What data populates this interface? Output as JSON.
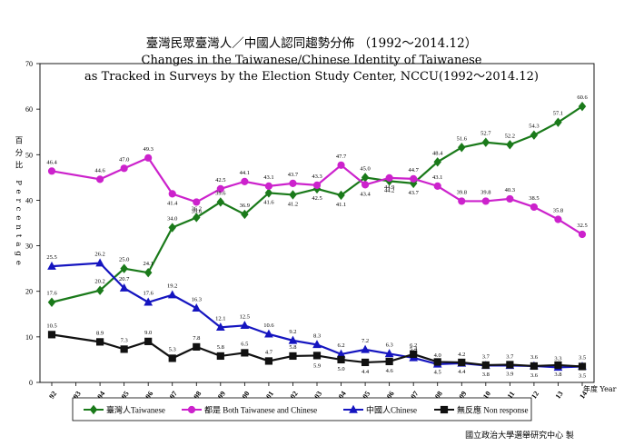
{
  "chart_data": {
    "type": "line",
    "title_zh": "臺灣民眾臺灣人／中國人認同趨勢分佈 （1992～2014.12）",
    "title_en_1": "Changes in the Taiwanese/Chinese Identity of Taiwanese",
    "title_en_2": "as Tracked in Surveys by the Election Study Center, NCCU(1992～2014.12)",
    "ylabel": "百分比 Percentage",
    "xlabel": "年度 Year",
    "source": "國立政治大學選舉研究中心 製",
    "ylim": [
      0,
      70
    ],
    "yticks": [
      0,
      10,
      20,
      30,
      40,
      50,
      60,
      70
    ],
    "xlim": [
      92,
      114
    ],
    "categories": [
      "92",
      "93",
      "94",
      "95",
      "96",
      "97",
      "98",
      "99",
      "00",
      "01",
      "02",
      "03",
      "04",
      "05",
      "06",
      "07",
      "08",
      "09",
      "10",
      "11",
      "12",
      "13",
      "14"
    ],
    "series": [
      {
        "name": "臺灣人Taiwanese",
        "color": "#1a7a1a",
        "marker": "diamond",
        "x": [
          92,
          94,
          95,
          96,
          97,
          98,
          99,
          100,
          101,
          102,
          103,
          104,
          105,
          106,
          107,
          108,
          109,
          110,
          111,
          112,
          113,
          114
        ],
        "values": [
          17.6,
          20.2,
          25.0,
          24.1,
          34.0,
          36.2,
          39.6,
          36.9,
          41.6,
          41.2,
          42.5,
          41.1,
          45.0,
          44.2,
          43.7,
          48.4,
          51.6,
          52.7,
          52.2,
          54.3,
          57.1,
          60.6
        ]
      },
      {
        "name": "都是 Both Taiwanese and Chinese",
        "color": "#cc22cc",
        "marker": "circle",
        "x": [
          92,
          94,
          95,
          96,
          97,
          98,
          99,
          100,
          101,
          102,
          103,
          104,
          105,
          106,
          107,
          108,
          109,
          110,
          111,
          112,
          113,
          114
        ],
        "values": [
          46.4,
          44.6,
          47.0,
          49.3,
          41.4,
          39.6,
          42.5,
          44.1,
          43.1,
          43.7,
          43.3,
          47.7,
          43.4,
          44.9,
          44.7,
          43.1,
          39.8,
          39.8,
          40.3,
          38.5,
          35.8,
          32.5
        ]
      },
      {
        "name": "中國人Chinese",
        "color": "#1515c0",
        "marker": "triangle",
        "x": [
          92,
          94,
          95,
          96,
          97,
          98,
          99,
          100,
          101,
          102,
          103,
          104,
          105,
          106,
          107,
          108,
          109,
          110,
          111,
          112,
          113,
          114
        ],
        "values": [
          25.5,
          26.2,
          20.7,
          17.6,
          19.2,
          16.3,
          12.1,
          12.5,
          10.6,
          9.2,
          8.3,
          6.2,
          7.2,
          6.3,
          5.4,
          4.0,
          4.2,
          3.7,
          3.7,
          3.6,
          3.3,
          3.5
        ]
      },
      {
        "name": "無反應 Non response",
        "color": "#111111",
        "marker": "square",
        "x": [
          92,
          94,
          95,
          96,
          97,
          98,
          99,
          100,
          101,
          102,
          103,
          104,
          105,
          106,
          107,
          108,
          109,
          110,
          111,
          112,
          113,
          114
        ],
        "values": [
          10.5,
          8.9,
          7.3,
          9.0,
          5.3,
          7.8,
          5.8,
          6.5,
          4.7,
          5.8,
          5.9,
          5.0,
          4.4,
          4.6,
          6.2,
          4.5,
          4.4,
          3.8,
          3.9,
          3.6,
          3.8,
          3.5
        ]
      }
    ],
    "labels": {
      "series0": [
        "17.6",
        "20.2",
        "25.0",
        "24.1",
        "34.0",
        "36.2",
        "39.6",
        "36.9",
        "41.6",
        "41.2",
        "42.5",
        "41.1",
        "45.0",
        "44.2",
        "43.7",
        "48.4",
        "51.6",
        "52.7",
        "52.2",
        "54.3",
        "57.1",
        "60.6"
      ],
      "series1": [
        "46.4",
        "44.6",
        "47.0",
        "49.3",
        "41.4",
        "39.6",
        "42.5",
        "44.1",
        "43.1",
        "43.7",
        "43.3",
        "47.7",
        "43.4",
        "44.9",
        "44.7",
        "43.1",
        "39.8",
        "39.8",
        "40.3",
        "38.5",
        "35.8",
        "32.5"
      ],
      "series2": [
        "25.5",
        "26.2",
        "20.7",
        "17.6",
        "19.2",
        "16.3",
        "12.1",
        "12.5",
        "10.6",
        "9.2",
        "8.3",
        "6.2",
        "7.2",
        "6.3",
        "5.4",
        "4.0",
        "4.2",
        "3.7",
        "3.7",
        "3.6",
        "3.3",
        "3.5"
      ],
      "series3": [
        "10.5",
        "8.9",
        "7.3",
        "9.0",
        "5.3",
        "7.8",
        "5.8",
        "6.5",
        "4.7",
        "5.8",
        "5.9",
        "5.0",
        "4.4",
        "4.6",
        "6.2",
        "4.5",
        "4.4",
        "3.8",
        "3.9",
        "3.6",
        "3.8",
        "3.5"
      ]
    },
    "grid": false,
    "legend": "bottom"
  }
}
